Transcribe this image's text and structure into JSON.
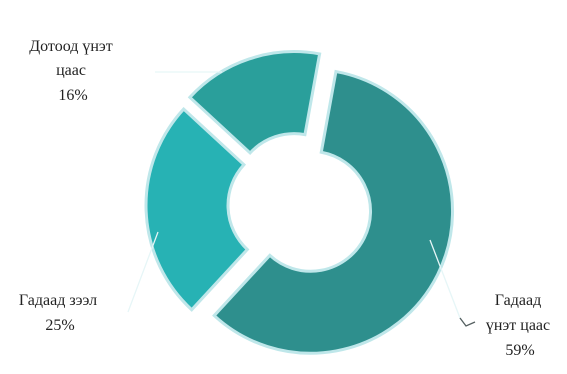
{
  "chart_data": {
    "type": "pie",
    "donut": true,
    "title": "",
    "slices": [
      {
        "name_lines": [
          "Гадаад",
          "үнэт цаас"
        ],
        "value": 59,
        "value_label": "59%",
        "color": "#2e8f8d"
      },
      {
        "name_lines": [
          "Гадаад зээл"
        ],
        "value": 25,
        "value_label": "25%",
        "color": "#27b2b4"
      },
      {
        "name_lines": [
          "Дотоод үнэт",
          "цаас"
        ],
        "value": 16,
        "value_label": "16%",
        "color": "#2a9f9b"
      }
    ]
  }
}
